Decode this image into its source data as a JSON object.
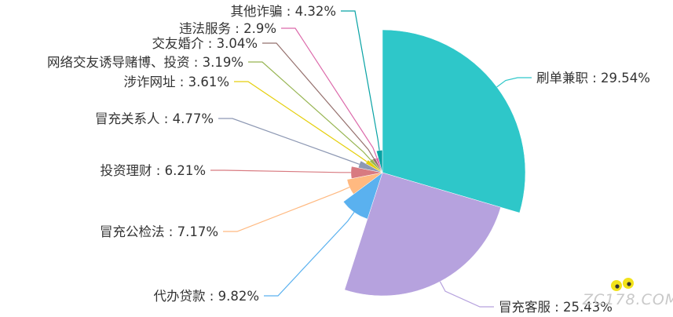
{
  "chart_data": {
    "type": "pie",
    "variant": "rose",
    "title": "",
    "start_angle_deg": 90,
    "direction": "clockwise",
    "slices": [
      {
        "name": "刷单兼职",
        "value": 29.54,
        "label": "刷单兼职 : 29.54%",
        "color": "#2ec7c9"
      },
      {
        "name": "冒充客服",
        "value": 25.43,
        "label": "冒充客服 : 25.43%",
        "color": "#b6a2de"
      },
      {
        "name": "代办贷款",
        "value": 9.82,
        "label": "代办贷款 : 9.82%",
        "color": "#5ab1ef"
      },
      {
        "name": "冒充公检法",
        "value": 7.17,
        "label": "冒充公检法 : 7.17%",
        "color": "#ffb980"
      },
      {
        "name": "投资理财",
        "value": 6.21,
        "label": "投资理财 : 6.21%",
        "color": "#d87a80"
      },
      {
        "name": "冒充关系人",
        "value": 4.77,
        "label": "冒充关系人 : 4.77%",
        "color": "#8d98b3"
      },
      {
        "name": "涉诈网址",
        "value": 3.61,
        "label": "涉诈网址 : 3.61%",
        "color": "#e5cf0d"
      },
      {
        "name": "网络交友诱导赌博、投资",
        "value": 3.19,
        "label": "网络交友诱导赌博、投资 : 3.19%",
        "color": "#97b552"
      },
      {
        "name": "交友婚介",
        "value": 3.04,
        "label": "交友婚介 : 3.04%",
        "color": "#95706d"
      },
      {
        "name": "违法服务",
        "value": 2.9,
        "label": "违法服务 : 2.9%",
        "color": "#dc69aa"
      },
      {
        "name": "其他诈骗",
        "value": 4.32,
        "label": "其他诈骗 : 4.32%",
        "color": "#07a2a4"
      }
    ]
  },
  "watermark": "ZC178.COM"
}
